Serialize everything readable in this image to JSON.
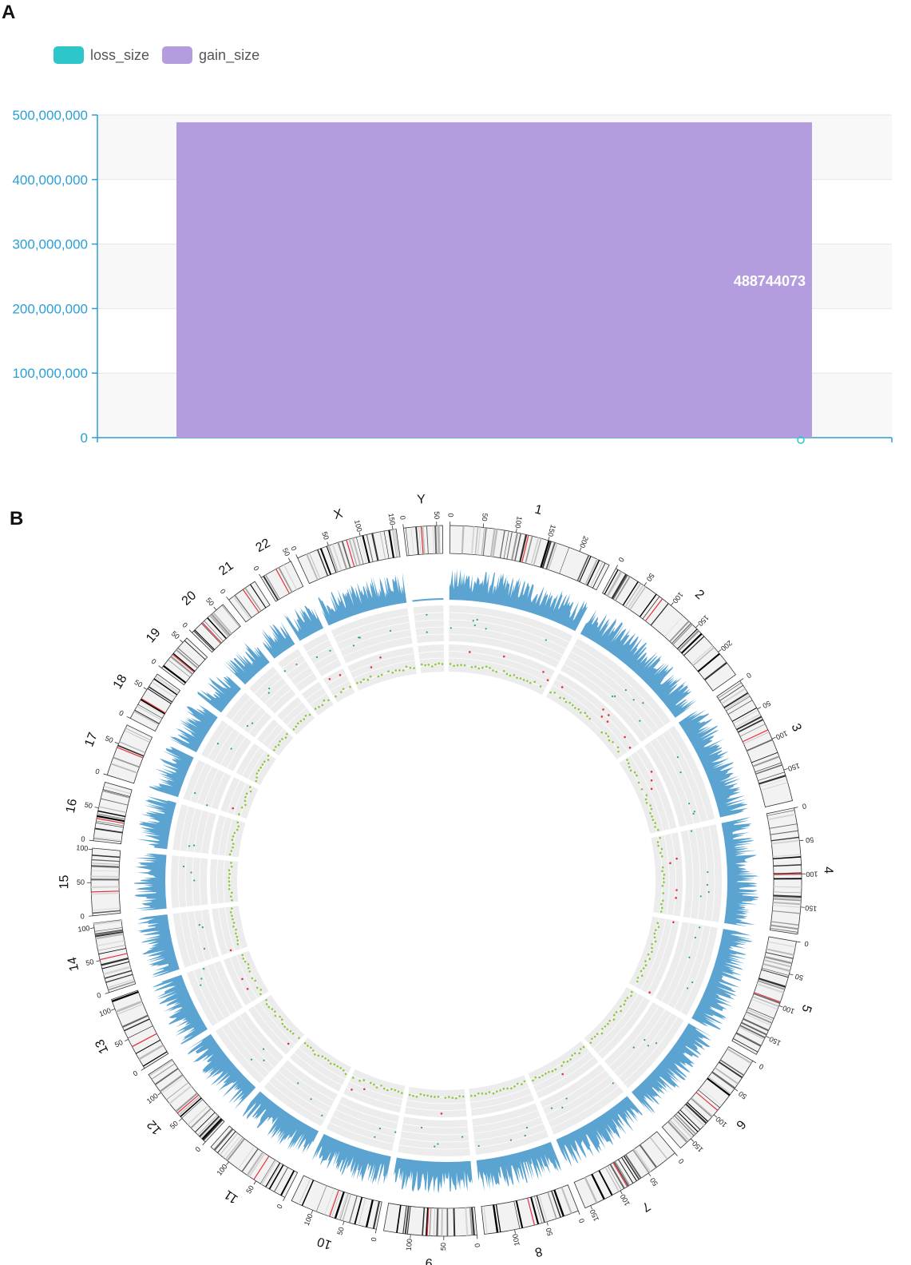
{
  "panels": {
    "a": "A",
    "b": "B"
  },
  "chart_data": [
    {
      "type": "bar",
      "legend": [
        {
          "name": "loss_size",
          "color": "#2ec7c9"
        },
        {
          "name": "gain_size",
          "color": "#b39ddf"
        }
      ],
      "categories": [
        ""
      ],
      "series": [
        {
          "name": "loss_size",
          "values": [
            0
          ]
        },
        {
          "name": "gain_size",
          "values": [
            488744073
          ]
        }
      ],
      "data_label": "488744073",
      "yticks": [
        "0",
        "100,000,000",
        "200,000,000",
        "300,000,000",
        "400,000,000",
        "500,000,000"
      ],
      "ylim": [
        0,
        500000000
      ],
      "axis_color": "#2a9fd6"
    },
    {
      "type": "circos",
      "chromosomes": [
        {
          "name": "1",
          "length": 249,
          "ticks": [
            "0",
            "50",
            "100",
            "150",
            "200"
          ]
        },
        {
          "name": "2",
          "length": 243,
          "ticks": [
            "0",
            "50",
            "100",
            "150",
            "200"
          ]
        },
        {
          "name": "3",
          "length": 198,
          "ticks": [
            "0",
            "50",
            "100",
            "150"
          ]
        },
        {
          "name": "4",
          "length": 191,
          "ticks": [
            "0",
            "50",
            "100",
            "150"
          ]
        },
        {
          "name": "5",
          "length": 181,
          "ticks": [
            "0",
            "50",
            "100",
            "150"
          ]
        },
        {
          "name": "6",
          "length": 171,
          "ticks": [
            "0",
            "50",
            "100",
            "150"
          ]
        },
        {
          "name": "7",
          "length": 159,
          "ticks": [
            "0",
            "50",
            "100",
            "150"
          ]
        },
        {
          "name": "8",
          "length": 146,
          "ticks": [
            "0",
            "50",
            "100"
          ]
        },
        {
          "name": "9",
          "length": 141,
          "ticks": [
            "0",
            "50",
            "100"
          ]
        },
        {
          "name": "10",
          "length": 135,
          "ticks": [
            "0",
            "50",
            "100"
          ]
        },
        {
          "name": "11",
          "length": 135,
          "ticks": [
            "0",
            "50",
            "100"
          ]
        },
        {
          "name": "12",
          "length": 133,
          "ticks": [
            "0",
            "50",
            "100"
          ]
        },
        {
          "name": "13",
          "length": 115,
          "ticks": [
            "0",
            "50",
            "100"
          ]
        },
        {
          "name": "14",
          "length": 107,
          "ticks": [
            "0",
            "50",
            "100"
          ]
        },
        {
          "name": "15",
          "length": 102,
          "ticks": [
            "0",
            "50",
            "100"
          ]
        },
        {
          "name": "16",
          "length": 90,
          "ticks": [
            "0",
            "50"
          ]
        },
        {
          "name": "17",
          "length": 81,
          "ticks": [
            "0",
            "50"
          ]
        },
        {
          "name": "18",
          "length": 78,
          "ticks": [
            "0",
            "50"
          ]
        },
        {
          "name": "19",
          "length": 59,
          "ticks": [
            "0",
            "50"
          ]
        },
        {
          "name": "20",
          "length": 63,
          "ticks": [
            "0",
            "50"
          ]
        },
        {
          "name": "21",
          "length": 48,
          "ticks": [
            "0"
          ]
        },
        {
          "name": "22",
          "length": 51,
          "ticks": [
            "0",
            "50"
          ]
        },
        {
          "name": "X",
          "length": 155,
          "ticks": [
            "0",
            "50",
            "100",
            "150"
          ]
        },
        {
          "name": "Y",
          "length": 59,
          "ticks": [
            "0",
            "50"
          ]
        }
      ],
      "colors": {
        "density": "#5ba3d0",
        "gain": "#8dc63f",
        "loss": "#e8303a",
        "other": "#2a9d8f",
        "centromere": "#e8303a",
        "track_bg": "#ececec"
      }
    }
  ]
}
